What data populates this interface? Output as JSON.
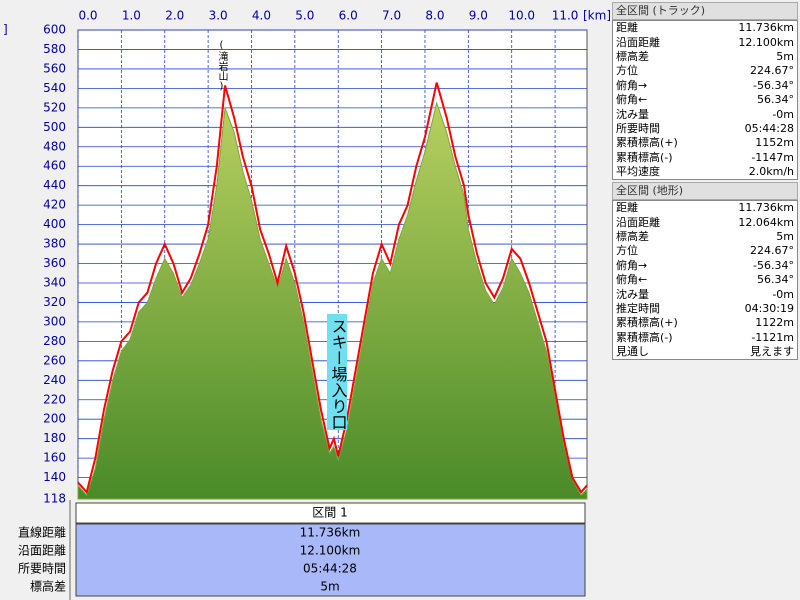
{
  "chart_data": {
    "type": "line",
    "ylabel": "]",
    "xlabel": "[km]",
    "annotations": [
      "(滝岩山)",
      "スキー場入り口"
    ],
    "x": [
      0,
      0.2,
      0.4,
      0.6,
      0.8,
      1.0,
      1.2,
      1.4,
      1.6,
      1.8,
      2.0,
      2.2,
      2.4,
      2.6,
      2.8,
      3.0,
      3.2,
      3.39,
      3.6,
      3.8,
      4.0,
      4.2,
      4.4,
      4.6,
      4.8,
      5.0,
      5.2,
      5.4,
      5.6,
      5.8,
      5.9,
      6.0,
      6.2,
      6.4,
      6.6,
      6.8,
      7.0,
      7.2,
      7.4,
      7.6,
      7.8,
      8.0,
      8.27,
      8.5,
      8.7,
      8.9,
      9.0,
      9.2,
      9.4,
      9.6,
      9.8,
      10.0,
      10.2,
      10.4,
      10.6,
      10.8,
      11.0,
      11.2,
      11.4,
      11.6,
      11.736
    ],
    "series": [
      {
        "color": "#7aa83a",
        "values": [
          132,
          122,
          150,
          200,
          240,
          270,
          282,
          310,
          320,
          345,
          365,
          350,
          325,
          338,
          360,
          385,
          440,
          520,
          495,
          455,
          425,
          385,
          360,
          335,
          365,
          340,
          300,
          250,
          200,
          165,
          172,
          158,
          190,
          240,
          290,
          340,
          365,
          350,
          385,
          410,
          445,
          475,
          525,
          495,
          460,
          430,
          395,
          360,
          332,
          318,
          335,
          365,
          350,
          330,
          300,
          270,
          225,
          175,
          138,
          122,
          128
        ]
      },
      {
        "color": "#ff0000",
        "values": [
          135,
          125,
          160,
          210,
          250,
          280,
          290,
          320,
          330,
          360,
          380,
          360,
          330,
          345,
          370,
          400,
          460,
          543,
          510,
          470,
          440,
          395,
          370,
          340,
          378,
          350,
          310,
          260,
          210,
          170,
          180,
          162,
          200,
          250,
          300,
          350,
          380,
          360,
          400,
          420,
          460,
          490,
          546,
          510,
          470,
          440,
          410,
          370,
          340,
          325,
          345,
          375,
          365,
          340,
          310,
          280,
          230,
          180,
          140,
          125,
          132
        ]
      }
    ],
    "xlim": [
      0,
      11.736
    ],
    "ylim": [
      118,
      600
    ],
    "xticks": [
      {
        "value": 0,
        "label": "0.0"
      },
      {
        "value": 1,
        "label": "1.0"
      },
      {
        "value": 2,
        "label": "2.0"
      },
      {
        "value": 3,
        "label": "3.0"
      },
      {
        "value": 4,
        "label": "4.0"
      },
      {
        "value": 5,
        "label": "5.0"
      },
      {
        "value": 6,
        "label": "6.0"
      },
      {
        "value": 7,
        "label": "7.0"
      },
      {
        "value": 8,
        "label": "8.0"
      },
      {
        "value": 9,
        "label": "9.0"
      },
      {
        "value": 10,
        "label": "10.0"
      },
      {
        "value": 11,
        "label": "11.0"
      }
    ],
    "yticks": [
      118,
      140,
      160,
      180,
      200,
      220,
      240,
      260,
      280,
      300,
      320,
      340,
      360,
      380,
      400,
      420,
      440,
      460,
      480,
      500,
      520,
      540,
      560,
      580,
      600
    ],
    "grid": true
  },
  "track_summary": {
    "title": "全区間 (トラック)",
    "rows": [
      [
        "距離",
        "11.736km"
      ],
      [
        "沿面距離",
        "12.100km"
      ],
      [
        "標高差",
        "5m"
      ],
      [
        "方位",
        "224.67°"
      ],
      [
        "俯角→",
        "-56.34°"
      ],
      [
        "俯角←",
        "56.34°"
      ],
      [
        "沈み量",
        "-0m"
      ],
      [
        "所要時間",
        "05:44:28"
      ],
      [
        "累積標高(+)",
        "1152m"
      ],
      [
        "累積標高(-)",
        "-1147m"
      ],
      [
        "平均速度",
        "2.0km/h"
      ]
    ]
  },
  "terrain_summary": {
    "title": "全区間 (地形)",
    "rows": [
      [
        "距離",
        "11.736km"
      ],
      [
        "沿面距離",
        "12.064km"
      ],
      [
        "標高差",
        "5m"
      ],
      [
        "方位",
        "224.67°"
      ],
      [
        "俯角→",
        "-56.34°"
      ],
      [
        "俯角←",
        "56.34°"
      ],
      [
        "沈み量",
        "-0m"
      ],
      [
        "推定時間",
        "04:30:19"
      ],
      [
        "累積標高(+)",
        "1122m"
      ],
      [
        "累積標高(-)",
        "-1121m"
      ],
      [
        "見通し",
        "見えます"
      ]
    ]
  },
  "section": {
    "title": "区間 1",
    "rows": [
      [
        "直線距離",
        "11.736km"
      ],
      [
        "沿面距離",
        "12.100km"
      ],
      [
        "所要時間",
        "05:44:28"
      ],
      [
        "標高差",
        "5m"
      ]
    ]
  }
}
